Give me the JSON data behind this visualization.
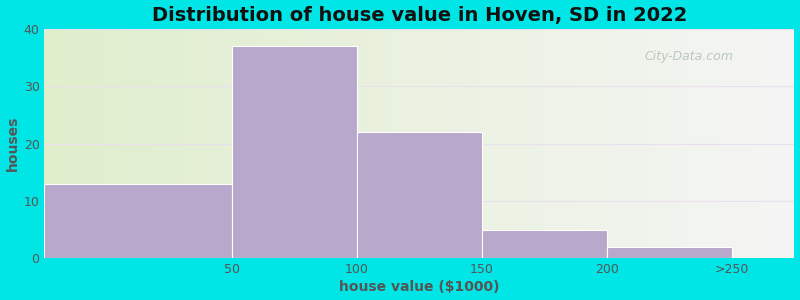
{
  "title": "Distribution of house value in Hoven, SD in 2022",
  "xlabel": "house value ($1000)",
  "ylabel": "houses",
  "bin_edges": [
    0,
    75,
    125,
    175,
    225,
    275
  ],
  "tick_positions": [
    75,
    125,
    175,
    225,
    275
  ],
  "tick_labels": [
    "50",
    "100",
    "150",
    "200",
    ">250"
  ],
  "values": [
    13,
    37,
    22,
    5,
    2
  ],
  "bar_color": "#b8a8cc",
  "bar_edgecolor": "#ffffff",
  "ylim": [
    0,
    40
  ],
  "yticks": [
    0,
    10,
    20,
    30,
    40
  ],
  "xlim": [
    0,
    300
  ],
  "bg_outer": "#00e5e5",
  "bg_left_color": "#e0eecc",
  "bg_right_color": "#f5f5f5",
  "title_fontsize": 14,
  "axis_label_fontsize": 10,
  "tick_fontsize": 9,
  "watermark_text": "City-Data.com",
  "watermark_color": "#b0c0b8",
  "grid_color": "#e8e0ee",
  "grid_linewidth": 0.8
}
